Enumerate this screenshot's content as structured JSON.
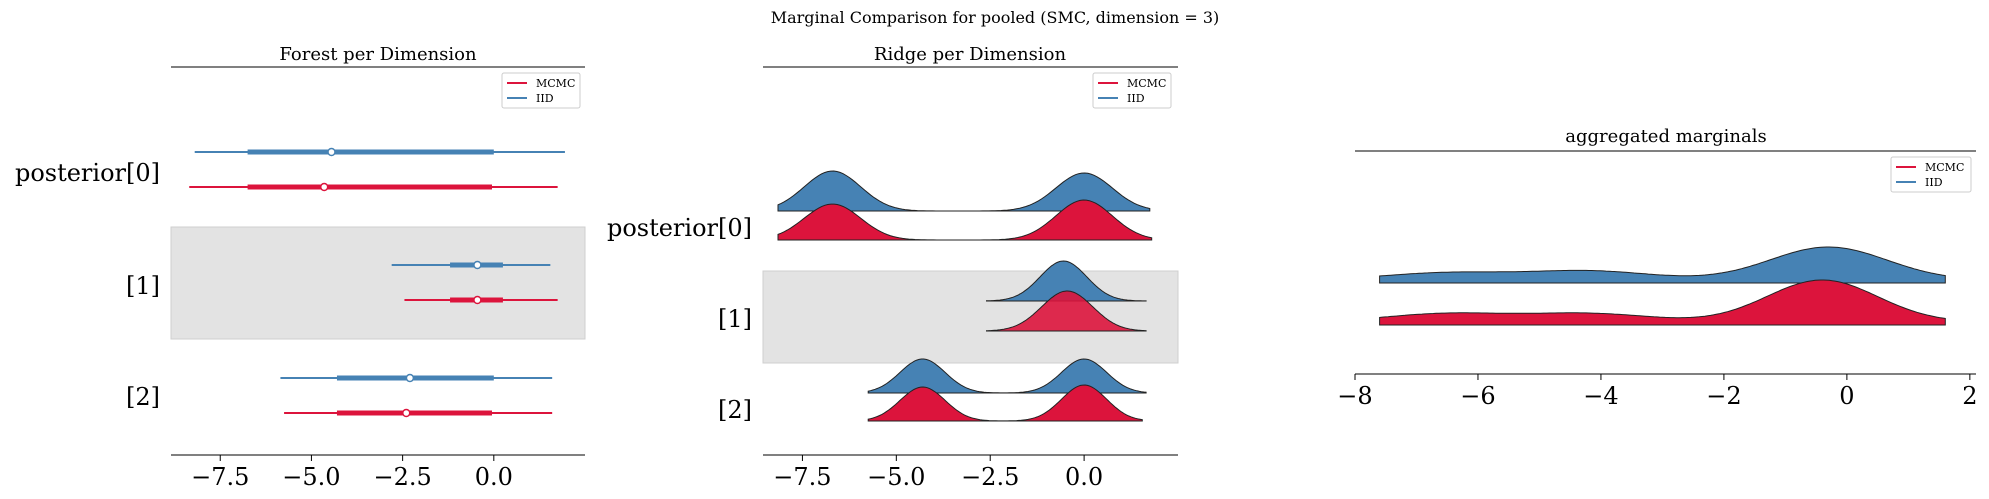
{
  "suptitle": "Marginal Comparison for pooled (SMC, dimension = 3)",
  "colors": {
    "mcmc": "#DC143C",
    "iid": "#4682B4",
    "band": "#e3e3e3"
  },
  "legend": {
    "mcmc": "MCMC",
    "iid": "IID"
  },
  "chart_data": [
    {
      "type": "forest",
      "title": "Forest per Dimension",
      "row_labels": [
        "posterior[0]",
        "[1]",
        "[2]"
      ],
      "xticks": [
        -7.5,
        -5.0,
        -2.5,
        0.0
      ],
      "xtick_labels": [
        "−7.5",
        "−5.0",
        "−2.5",
        "0.0"
      ],
      "xlim": [
        -8.85,
        2.5
      ],
      "legend_position": "top-right",
      "series": [
        {
          "name": "IID",
          "rows": [
            {
              "low": -8.2,
              "q1": -6.75,
              "mean": -4.45,
              "q3": 0.0,
              "high": 1.95
            },
            {
              "low": -2.8,
              "q1": -1.2,
              "mean": -0.45,
              "q3": 0.25,
              "high": 1.55
            },
            {
              "low": -5.85,
              "q1": -4.3,
              "mean": -2.3,
              "q3": 0.0,
              "high": 1.6
            }
          ]
        },
        {
          "name": "MCMC",
          "rows": [
            {
              "low": -8.35,
              "q1": -6.75,
              "mean": -4.65,
              "q3": -0.05,
              "high": 1.75
            },
            {
              "low": -2.45,
              "q1": -1.2,
              "mean": -0.45,
              "q3": 0.25,
              "high": 1.75
            },
            {
              "low": -5.75,
              "q1": -4.3,
              "mean": -2.4,
              "q3": -0.05,
              "high": 1.6
            }
          ]
        }
      ]
    },
    {
      "type": "ridgeline",
      "title": "Ridge per Dimension",
      "row_labels": [
        "posterior[0]",
        "[1]",
        "[2]"
      ],
      "xticks": [
        -7.5,
        -5.0,
        -2.5,
        0.0
      ],
      "xtick_labels": [
        "−7.5",
        "−5.0",
        "−2.5",
        "0.0"
      ],
      "xlim": [
        -8.55,
        2.5
      ],
      "legend_position": "top-right",
      "series": [
        {
          "name": "IID",
          "rows": [
            {
              "range": [
                -8.15,
                1.75
              ],
              "modes": [
                [
                  -6.7,
                  1.0,
                  0.75
                ],
                [
                  0.0,
                  0.95,
                  0.75
                ]
              ]
            },
            {
              "range": [
                -2.6,
                1.65
              ],
              "modes": [
                [
                  -0.55,
                  1.0,
                  0.62
                ]
              ]
            },
            {
              "range": [
                -5.75,
                1.65
              ],
              "modes": [
                [
                  -4.3,
                  0.85,
                  0.6
                ],
                [
                  0.0,
                  0.85,
                  0.6
                ]
              ]
            }
          ]
        },
        {
          "name": "MCMC",
          "rows": [
            {
              "range": [
                -8.15,
                1.8
              ],
              "modes": [
                [
                  -6.7,
                  0.9,
                  0.75
                ],
                [
                  0.0,
                  1.0,
                  0.75
                ]
              ]
            },
            {
              "range": [
                -2.6,
                1.65
              ],
              "modes": [
                [
                  -0.45,
                  1.0,
                  0.68
                ]
              ]
            },
            {
              "range": [
                -5.75,
                1.55
              ],
              "modes": [
                [
                  -4.3,
                  0.85,
                  0.6
                ],
                [
                  0.0,
                  0.9,
                  0.6
                ]
              ]
            }
          ]
        }
      ]
    },
    {
      "type": "area",
      "title": "aggregated marginals",
      "xticks": [
        -8,
        -6,
        -4,
        -2,
        0,
        2
      ],
      "xtick_labels": [
        "−8",
        "−6",
        "−4",
        "−2",
        "0",
        "2"
      ],
      "xlim": [
        -8,
        2.1
      ],
      "legend_position": "top-right",
      "series": [
        {
          "name": "IID",
          "range": [
            -7.6,
            1.6
          ],
          "base": 0.05,
          "modes": [
            [
              -6.5,
              0.12,
              1.0
            ],
            [
              -4.2,
              0.15,
              1.0
            ],
            [
              -0.3,
              0.55,
              0.95
            ]
          ]
        },
        {
          "name": "MCMC",
          "range": [
            -7.6,
            1.6
          ],
          "base": 0.05,
          "modes": [
            [
              -6.5,
              0.14,
              1.0
            ],
            [
              -4.2,
              0.14,
              1.0
            ],
            [
              -0.4,
              0.7,
              0.9
            ]
          ]
        }
      ]
    }
  ]
}
